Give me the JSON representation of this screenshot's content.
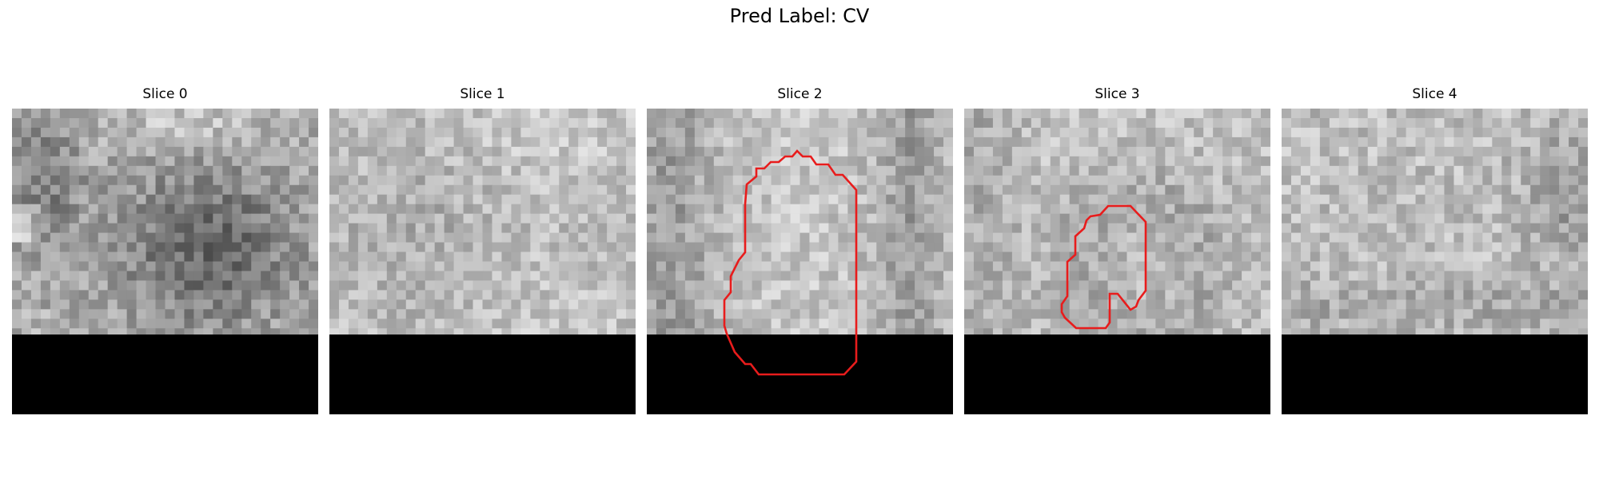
{
  "figure": {
    "suptitle": "Pred Label: CV"
  },
  "panels": [
    {
      "title": "Slice 0",
      "has_contour": false
    },
    {
      "title": "Slice 1",
      "has_contour": false
    },
    {
      "title": "Slice 2",
      "has_contour": true
    },
    {
      "title": "Slice 3",
      "has_contour": true
    },
    {
      "title": "Slice 4",
      "has_contour": false
    }
  ],
  "colors": {
    "contour": "#e81c1c",
    "masked_region": "#000000"
  }
}
